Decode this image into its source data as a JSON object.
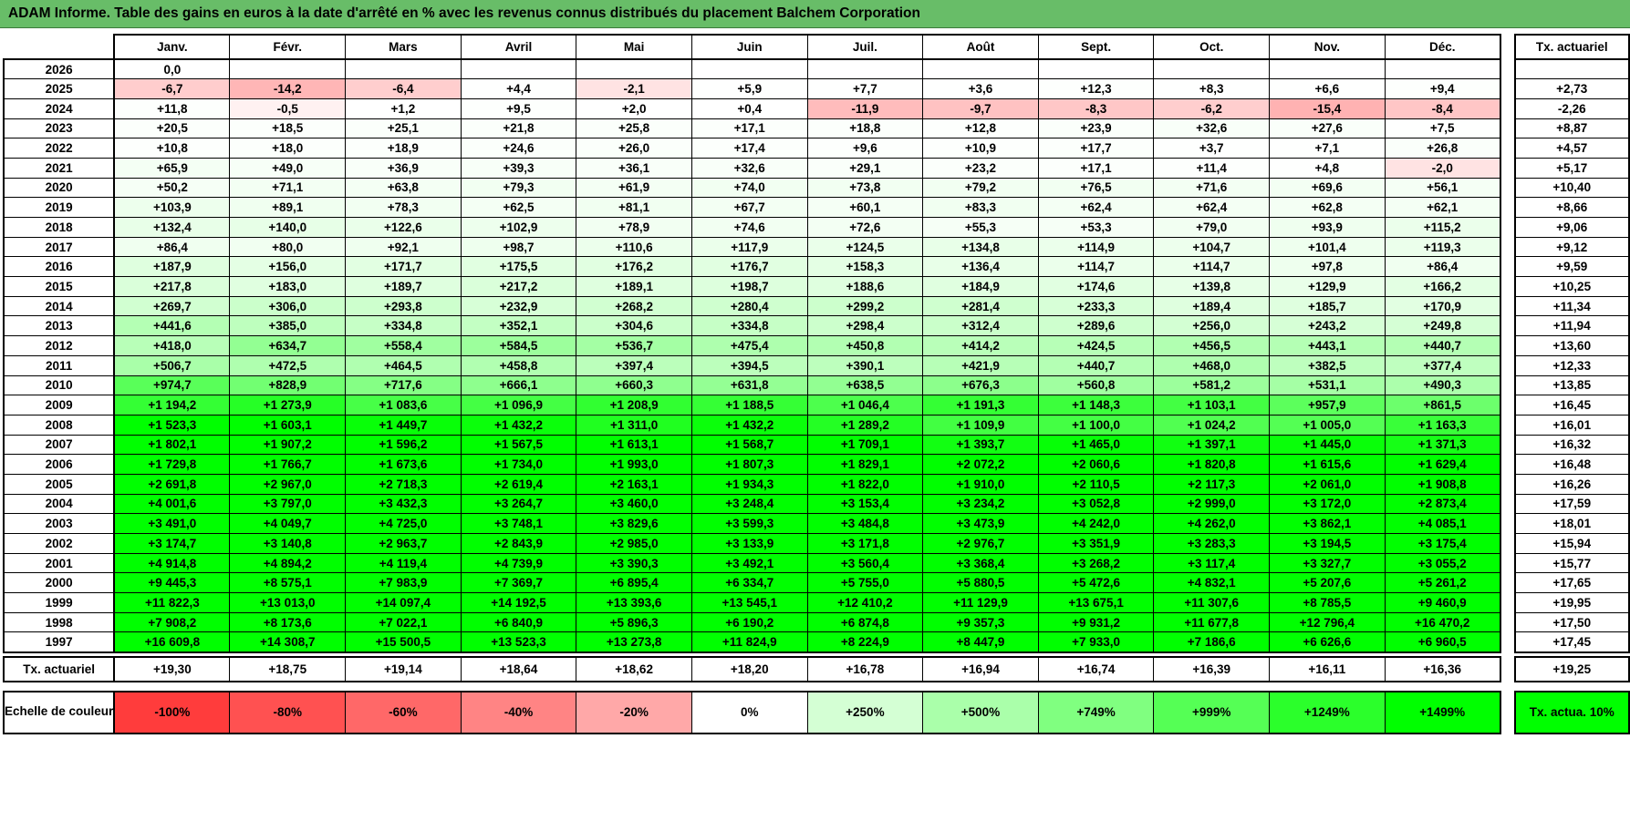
{
  "colors": {
    "title_bg": "#68BD68",
    "scale_negative_end": "#FF3C3C",
    "scale_neutral": "#FFFFFF",
    "scale_positive_end": "#00FF00",
    "legend_corner_bg": "#00FF00"
  },
  "chart_data": {
    "type": "heatmap",
    "title": "ADAM Informe. Table des gains en euros à la date d'arrêté en % avec les revenus connus distribués du placement Balchem Corporation",
    "columns": [
      "Janv.",
      "Févr.",
      "Mars",
      "Avril",
      "Mai",
      "Juin",
      "Juil.",
      "Août",
      "Sept.",
      "Oct.",
      "Nov.",
      "Déc."
    ],
    "right_header": "Tx. actuariel",
    "value_range": {
      "min": -100,
      "mid": 0,
      "max": 1499
    },
    "rows": [
      {
        "year": "2026",
        "values": [
          "0,0",
          "",
          "",
          "",
          "",
          "",
          "",
          "",
          "",
          "",
          "",
          ""
        ],
        "tx": ""
      },
      {
        "year": "2025",
        "values": [
          "-6,7",
          "-14,2",
          "-6,4",
          "+4,4",
          "-2,1",
          "+5,9",
          "+7,7",
          "+3,6",
          "+12,3",
          "+8,3",
          "+6,6",
          "+9,4"
        ],
        "tx": "+2,73"
      },
      {
        "year": "2024",
        "values": [
          "+11,8",
          "-0,5",
          "+1,2",
          "+9,5",
          "+2,0",
          "+0,4",
          "-11,9",
          "-9,7",
          "-8,3",
          "-6,2",
          "-15,4",
          "-8,4"
        ],
        "tx": "-2,26"
      },
      {
        "year": "2023",
        "values": [
          "+20,5",
          "+18,5",
          "+25,1",
          "+21,8",
          "+25,8",
          "+17,1",
          "+18,8",
          "+12,8",
          "+23,9",
          "+32,6",
          "+27,6",
          "+7,5"
        ],
        "tx": "+8,87"
      },
      {
        "year": "2022",
        "values": [
          "+10,8",
          "+18,0",
          "+18,9",
          "+24,6",
          "+26,0",
          "+17,4",
          "+9,6",
          "+10,9",
          "+17,7",
          "+3,7",
          "+7,1",
          "+26,8"
        ],
        "tx": "+4,57"
      },
      {
        "year": "2021",
        "values": [
          "+65,9",
          "+49,0",
          "+36,9",
          "+39,3",
          "+36,1",
          "+32,6",
          "+29,1",
          "+23,2",
          "+17,1",
          "+11,4",
          "+4,8",
          "-2,0"
        ],
        "tx": "+5,17"
      },
      {
        "year": "2020",
        "values": [
          "+50,2",
          "+71,1",
          "+63,8",
          "+79,3",
          "+61,9",
          "+74,0",
          "+73,8",
          "+79,2",
          "+76,5",
          "+71,6",
          "+69,6",
          "+56,1"
        ],
        "tx": "+10,40"
      },
      {
        "year": "2019",
        "values": [
          "+103,9",
          "+89,1",
          "+78,3",
          "+62,5",
          "+81,1",
          "+67,7",
          "+60,1",
          "+83,3",
          "+62,4",
          "+62,4",
          "+62,8",
          "+62,1"
        ],
        "tx": "+8,66"
      },
      {
        "year": "2018",
        "values": [
          "+132,4",
          "+140,0",
          "+122,6",
          "+102,9",
          "+78,9",
          "+74,6",
          "+72,6",
          "+55,3",
          "+53,3",
          "+79,0",
          "+93,9",
          "+115,2"
        ],
        "tx": "+9,06"
      },
      {
        "year": "2017",
        "values": [
          "+86,4",
          "+80,0",
          "+92,1",
          "+98,7",
          "+110,6",
          "+117,9",
          "+124,5",
          "+134,8",
          "+114,9",
          "+104,7",
          "+101,4",
          "+119,3"
        ],
        "tx": "+9,12"
      },
      {
        "year": "2016",
        "values": [
          "+187,9",
          "+156,0",
          "+171,7",
          "+175,5",
          "+176,2",
          "+176,7",
          "+158,3",
          "+136,4",
          "+114,7",
          "+114,7",
          "+97,8",
          "+86,4"
        ],
        "tx": "+9,59"
      },
      {
        "year": "2015",
        "values": [
          "+217,8",
          "+183,0",
          "+189,7",
          "+217,2",
          "+189,1",
          "+198,7",
          "+188,6",
          "+184,9",
          "+174,6",
          "+139,8",
          "+129,9",
          "+166,2"
        ],
        "tx": "+10,25"
      },
      {
        "year": "2014",
        "values": [
          "+269,7",
          "+306,0",
          "+293,8",
          "+232,9",
          "+268,2",
          "+280,4",
          "+299,2",
          "+281,4",
          "+233,3",
          "+189,4",
          "+185,7",
          "+170,9"
        ],
        "tx": "+11,34"
      },
      {
        "year": "2013",
        "values": [
          "+441,6",
          "+385,0",
          "+334,8",
          "+352,1",
          "+304,6",
          "+334,8",
          "+298,4",
          "+312,4",
          "+289,6",
          "+256,0",
          "+243,2",
          "+249,8"
        ],
        "tx": "+11,94"
      },
      {
        "year": "2012",
        "values": [
          "+418,0",
          "+634,7",
          "+558,4",
          "+584,5",
          "+536,7",
          "+475,4",
          "+450,8",
          "+414,2",
          "+424,5",
          "+456,5",
          "+443,1",
          "+440,7"
        ],
        "tx": "+13,60"
      },
      {
        "year": "2011",
        "values": [
          "+506,7",
          "+472,5",
          "+464,5",
          "+458,8",
          "+397,4",
          "+394,5",
          "+390,1",
          "+421,9",
          "+440,7",
          "+468,0",
          "+382,5",
          "+377,4"
        ],
        "tx": "+12,33"
      },
      {
        "year": "2010",
        "values": [
          "+974,7",
          "+828,9",
          "+717,6",
          "+666,1",
          "+660,3",
          "+631,8",
          "+638,5",
          "+676,3",
          "+560,8",
          "+581,2",
          "+531,1",
          "+490,3"
        ],
        "tx": "+13,85"
      },
      {
        "year": "2009",
        "values": [
          "+1 194,2",
          "+1 273,9",
          "+1 083,6",
          "+1 096,9",
          "+1 208,9",
          "+1 188,5",
          "+1 046,4",
          "+1 191,3",
          "+1 148,3",
          "+1 103,1",
          "+957,9",
          "+861,5"
        ],
        "tx": "+16,45"
      },
      {
        "year": "2008",
        "values": [
          "+1 523,3",
          "+1 603,1",
          "+1 449,7",
          "+1 432,2",
          "+1 311,0",
          "+1 432,2",
          "+1 289,2",
          "+1 109,9",
          "+1 100,0",
          "+1 024,2",
          "+1 005,0",
          "+1 163,3"
        ],
        "tx": "+16,01"
      },
      {
        "year": "2007",
        "values": [
          "+1 802,1",
          "+1 907,2",
          "+1 596,2",
          "+1 567,5",
          "+1 613,1",
          "+1 568,7",
          "+1 709,1",
          "+1 393,7",
          "+1 465,0",
          "+1 397,1",
          "+1 445,0",
          "+1 371,3"
        ],
        "tx": "+16,32"
      },
      {
        "year": "2006",
        "values": [
          "+1 729,8",
          "+1 766,7",
          "+1 673,6",
          "+1 734,0",
          "+1 993,0",
          "+1 807,3",
          "+1 829,1",
          "+2 072,2",
          "+2 060,6",
          "+1 820,8",
          "+1 615,6",
          "+1 629,4"
        ],
        "tx": "+16,48"
      },
      {
        "year": "2005",
        "values": [
          "+2 691,8",
          "+2 967,0",
          "+2 718,3",
          "+2 619,4",
          "+2 163,1",
          "+1 934,3",
          "+1 822,0",
          "+1 910,0",
          "+2 110,5",
          "+2 117,3",
          "+2 061,0",
          "+1 908,8"
        ],
        "tx": "+16,26"
      },
      {
        "year": "2004",
        "values": [
          "+4 001,6",
          "+3 797,0",
          "+3 432,3",
          "+3 264,7",
          "+3 460,0",
          "+3 248,4",
          "+3 153,4",
          "+3 234,2",
          "+3 052,8",
          "+2 999,0",
          "+3 172,0",
          "+2 873,4"
        ],
        "tx": "+17,59"
      },
      {
        "year": "2003",
        "values": [
          "+3 491,0",
          "+4 049,7",
          "+4 725,0",
          "+3 748,1",
          "+3 829,6",
          "+3 599,3",
          "+3 484,8",
          "+3 473,9",
          "+4 242,0",
          "+4 262,0",
          "+3 862,1",
          "+4 085,1"
        ],
        "tx": "+18,01"
      },
      {
        "year": "2002",
        "values": [
          "+3 174,7",
          "+3 140,8",
          "+2 963,7",
          "+2 843,9",
          "+2 985,0",
          "+3 133,9",
          "+3 171,8",
          "+2 976,7",
          "+3 351,9",
          "+3 283,3",
          "+3 194,5",
          "+3 175,4"
        ],
        "tx": "+15,94"
      },
      {
        "year": "2001",
        "values": [
          "+4 914,8",
          "+4 894,2",
          "+4 119,4",
          "+4 739,9",
          "+3 390,3",
          "+3 492,1",
          "+3 560,4",
          "+3 368,4",
          "+3 268,2",
          "+3 117,4",
          "+3 327,7",
          "+3 055,2"
        ],
        "tx": "+15,77"
      },
      {
        "year": "2000",
        "values": [
          "+9 445,3",
          "+8 575,1",
          "+7 983,9",
          "+7 369,7",
          "+6 895,4",
          "+6 334,7",
          "+5 755,0",
          "+5 880,5",
          "+5 472,6",
          "+4 832,1",
          "+5 207,6",
          "+5 261,2"
        ],
        "tx": "+17,65"
      },
      {
        "year": "1999",
        "values": [
          "+11 822,3",
          "+13 013,0",
          "+14 097,4",
          "+14 192,5",
          "+13 393,6",
          "+13 545,1",
          "+12 410,2",
          "+11 129,9",
          "+13 675,1",
          "+11 307,6",
          "+8 785,5",
          "+9 460,9"
        ],
        "tx": "+19,95"
      },
      {
        "year": "1998",
        "values": [
          "+7 908,2",
          "+8 173,6",
          "+7 022,1",
          "+6 840,9",
          "+5 896,3",
          "+6 190,2",
          "+6 874,8",
          "+9 357,3",
          "+9 931,2",
          "+11 677,8",
          "+12 796,4",
          "+16 470,2"
        ],
        "tx": "+17,50"
      },
      {
        "year": "1997",
        "values": [
          "+16 609,8",
          "+14 308,7",
          "+15 500,5",
          "+13 523,3",
          "+13 273,8",
          "+11 824,9",
          "+8 224,9",
          "+8 447,9",
          "+7 933,0",
          "+7 186,6",
          "+6 626,6",
          "+6 960,5"
        ],
        "tx": "+17,45"
      }
    ],
    "footer": {
      "label": "Tx. actuariel",
      "values": [
        "+19,30",
        "+18,75",
        "+19,14",
        "+18,64",
        "+18,62",
        "+18,20",
        "+16,78",
        "+16,94",
        "+16,74",
        "+16,39",
        "+16,11",
        "+16,36"
      ],
      "tx": "+19,25"
    },
    "legend": {
      "label": "Echelle de couleur",
      "stops": [
        {
          "label": "-100%",
          "value": -100
        },
        {
          "label": "-80%",
          "value": -80
        },
        {
          "label": "-60%",
          "value": -60
        },
        {
          "label": "-40%",
          "value": -40
        },
        {
          "label": "-20%",
          "value": -20
        },
        {
          "label": "0%",
          "value": 0
        },
        {
          "label": "+250%",
          "value": 250
        },
        {
          "label": "+500%",
          "value": 500
        },
        {
          "label": "+749%",
          "value": 749
        },
        {
          "label": "+999%",
          "value": 999
        },
        {
          "label": "+1249%",
          "value": 1249
        },
        {
          "label": "+1499%",
          "value": 1499
        }
      ],
      "corner": "Tx.\nactua. 10%"
    }
  }
}
